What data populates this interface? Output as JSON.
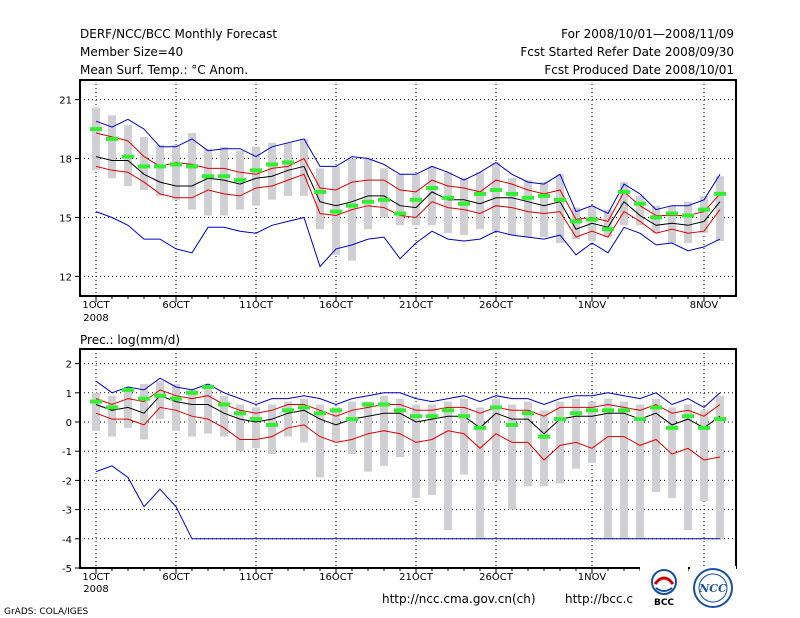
{
  "header": {
    "left": [
      "DERF/NCC/BCC Monthly Forecast",
      "Member Size=40",
      "Mean Surf. Temp.: °C Anom."
    ],
    "right": [
      "For 2008/10/01—2008/11/09",
      "Fcst Started Refer Date 2008/09/30",
      "Fcst Produced Date 2008/10/01"
    ]
  },
  "footer": {
    "grads": "GrADS: COLA/IGES",
    "url1": "http://ncc.cma.gov.cn(ch)",
    "url2": "http://bcc.c",
    "logo_bcc": "BCC",
    "logo_ncc": "NCC"
  },
  "colors": {
    "envelope": "#0000cc",
    "spread": "#dd0000",
    "mean": "#000000",
    "median": "#33ee33",
    "box": "#d0d0d4",
    "grid": "#000000"
  },
  "chart_data": [
    {
      "type": "box",
      "title": "Mean Surf. Temp.: °C Anom.",
      "ylim": [
        11,
        22
      ],
      "yticks": [
        12,
        15,
        18,
        21
      ],
      "xticks": [
        {
          "day": 1,
          "label": "1OCT",
          "sub": "2008"
        },
        {
          "day": 6,
          "label": "6OCT"
        },
        {
          "day": 11,
          "label": "11OCT"
        },
        {
          "day": 16,
          "label": "16OCT"
        },
        {
          "day": 21,
          "label": "21OCT"
        },
        {
          "day": 26,
          "label": "26OCT"
        },
        {
          "day": 32,
          "label": "1NOV"
        },
        {
          "day": 39,
          "label": "8NOV"
        }
      ],
      "days": 40,
      "series": {
        "max": [
          19.9,
          19.6,
          20.0,
          19.5,
          18.6,
          18.6,
          19.0,
          18.4,
          18.5,
          18.5,
          18.1,
          18.6,
          18.8,
          19.0,
          17.6,
          17.6,
          18.1,
          18.0,
          17.7,
          17.2,
          17.2,
          17.6,
          17.3,
          16.9,
          17.3,
          17.8,
          17.2,
          16.8,
          16.7,
          17.2,
          15.3,
          15.6,
          15.2,
          16.7,
          16.2,
          15.4,
          15.6,
          15.6,
          15.9,
          17.2
        ],
        "upper": [
          19.3,
          19.1,
          18.9,
          18.1,
          17.6,
          17.8,
          17.7,
          17.5,
          17.5,
          17.3,
          17.2,
          17.5,
          17.6,
          18.0,
          16.5,
          16.4,
          16.8,
          16.9,
          16.9,
          16.4,
          16.3,
          16.9,
          16.6,
          16.5,
          16.3,
          16.9,
          16.7,
          16.4,
          16.2,
          16.4,
          14.9,
          15.0,
          14.8,
          16.3,
          15.6,
          15.1,
          15.1,
          15.1,
          15.3,
          16.2
        ],
        "mean": [
          18.1,
          17.9,
          17.9,
          17.2,
          16.8,
          16.6,
          16.6,
          17.0,
          16.9,
          16.7,
          17.0,
          17.1,
          17.4,
          17.6,
          15.8,
          15.6,
          15.8,
          16.1,
          16.1,
          15.6,
          15.5,
          16.3,
          15.9,
          15.9,
          15.7,
          16.0,
          16.0,
          15.8,
          15.6,
          15.8,
          14.4,
          14.7,
          14.5,
          15.8,
          15.1,
          14.6,
          14.7,
          14.6,
          14.8,
          15.8
        ],
        "lower": [
          17.6,
          17.4,
          17.3,
          16.8,
          16.2,
          16.0,
          16.0,
          16.4,
          16.2,
          16.1,
          16.5,
          16.6,
          16.9,
          17.2,
          15.2,
          15.1,
          15.4,
          15.6,
          15.5,
          15.1,
          15.0,
          15.8,
          15.5,
          15.4,
          15.2,
          15.6,
          15.5,
          15.3,
          15.2,
          15.3,
          14.0,
          14.3,
          14.0,
          15.3,
          14.8,
          14.2,
          14.4,
          14.2,
          14.3,
          15.4
        ],
        "min": [
          15.3,
          15.0,
          14.6,
          13.9,
          13.9,
          13.4,
          13.2,
          14.5,
          14.5,
          14.3,
          14.2,
          14.6,
          14.8,
          15.0,
          12.5,
          13.4,
          13.6,
          13.9,
          14.0,
          12.9,
          13.7,
          14.3,
          13.9,
          13.8,
          13.9,
          14.3,
          14.1,
          14.0,
          13.9,
          14.1,
          13.1,
          13.7,
          13.2,
          14.5,
          14.2,
          13.6,
          13.7,
          13.3,
          13.5,
          13.9
        ],
        "box_hi": [
          20.6,
          20.2,
          19.7,
          19.1,
          18.7,
          18.7,
          19.3,
          18.5,
          18.6,
          18.4,
          18.6,
          18.8,
          18.8,
          19.0,
          17.5,
          17.6,
          18.0,
          18.0,
          17.5,
          17.2,
          17.2,
          17.6,
          17.3,
          17.0,
          17.3,
          17.8,
          17.0,
          16.9,
          16.8,
          17.2,
          15.5,
          15.6,
          15.4,
          16.8,
          16.1,
          15.6,
          15.6,
          15.8,
          16.1,
          17.1
        ],
        "box_lo": [
          17.4,
          17.0,
          16.6,
          16.4,
          16.1,
          15.9,
          15.4,
          15.1,
          15.1,
          15.4,
          15.6,
          15.9,
          16.1,
          16.1,
          14.4,
          13.1,
          12.8,
          14.4,
          15.0,
          14.6,
          14.6,
          14.6,
          14.2,
          14.1,
          14.4,
          14.3,
          14.1,
          14.0,
          14.0,
          13.7,
          13.9,
          13.8,
          14.0,
          14.6,
          14.6,
          14.2,
          13.7,
          13.7,
          14.2,
          13.8
        ],
        "median": [
          19.5,
          19.0,
          18.1,
          17.6,
          17.6,
          17.7,
          17.6,
          17.1,
          17.1,
          16.9,
          17.4,
          17.7,
          17.8,
          null,
          16.3,
          15.3,
          15.6,
          15.8,
          15.9,
          15.2,
          15.9,
          16.5,
          16.0,
          15.7,
          16.2,
          16.4,
          16.2,
          16.0,
          16.1,
          15.9,
          14.8,
          14.9,
          14.4,
          16.3,
          15.7,
          15.0,
          15.2,
          15.1,
          15.4,
          16.2
        ]
      }
    },
    {
      "type": "box",
      "title": "Prec.: log(mm/d)",
      "ylim": [
        -5,
        2.5
      ],
      "yticks": [
        -5,
        -4,
        -3,
        -2,
        -1,
        0,
        1,
        2
      ],
      "xticks": [
        {
          "day": 1,
          "label": "1OCT",
          "sub": "2008"
        },
        {
          "day": 6,
          "label": "6OCT"
        },
        {
          "day": 11,
          "label": "11OCT"
        },
        {
          "day": 16,
          "label": "16OCT"
        },
        {
          "day": 21,
          "label": "21OCT"
        },
        {
          "day": 26,
          "label": "26OCT"
        },
        {
          "day": 32,
          "label": "1NOV"
        },
        {
          "day": 39,
          "label": "8NOV"
        }
      ],
      "days": 40,
      "series": {
        "max": [
          1.4,
          1.0,
          1.2,
          1.1,
          1.5,
          1.2,
          1.1,
          1.3,
          1.0,
          0.8,
          0.6,
          0.8,
          0.8,
          0.9,
          0.8,
          0.6,
          0.8,
          0.9,
          1.0,
          1.0,
          0.8,
          0.7,
          0.8,
          0.9,
          0.7,
          0.9,
          0.8,
          0.8,
          0.6,
          0.8,
          0.9,
          0.9,
          1.0,
          0.9,
          0.8,
          1.0,
          0.6,
          0.8,
          0.5,
          1.0
        ],
        "upper": [
          0.8,
          0.6,
          0.8,
          0.7,
          1.1,
          0.9,
          0.8,
          0.9,
          0.6,
          0.4,
          0.3,
          0.4,
          0.6,
          0.6,
          0.4,
          0.2,
          0.4,
          0.5,
          0.6,
          0.6,
          0.4,
          0.4,
          0.5,
          0.5,
          0.3,
          0.5,
          0.4,
          0.4,
          0.2,
          0.5,
          0.5,
          0.5,
          0.6,
          0.5,
          0.4,
          0.6,
          0.3,
          0.4,
          0.2,
          0.6
        ],
        "mean": [
          0.6,
          0.4,
          0.5,
          0.3,
          0.9,
          0.7,
          0.6,
          0.6,
          0.3,
          0.1,
          0.0,
          0.1,
          0.3,
          0.4,
          0.1,
          -0.1,
          0.1,
          0.2,
          0.3,
          0.3,
          0.0,
          0.1,
          0.2,
          0.2,
          -0.2,
          0.3,
          0.1,
          0.1,
          -0.4,
          0.1,
          0.2,
          0.2,
          0.3,
          0.3,
          0.1,
          0.3,
          -0.1,
          0.1,
          -0.2,
          0.2
        ],
        "lower": [
          0.3,
          0.1,
          0.1,
          -0.1,
          0.5,
          0.4,
          0.2,
          0.1,
          -0.2,
          -0.6,
          -0.6,
          -0.5,
          -0.2,
          -0.1,
          -0.5,
          -0.7,
          -0.6,
          -0.4,
          -0.3,
          -0.4,
          -0.7,
          -0.6,
          -0.3,
          -0.4,
          -0.9,
          -0.4,
          -0.7,
          -0.7,
          -1.3,
          -0.8,
          -0.7,
          -0.9,
          -0.5,
          -0.5,
          -0.8,
          -0.6,
          -1.1,
          -0.9,
          -1.3,
          -1.2
        ],
        "min": [
          -1.7,
          -1.5,
          -1.9,
          -2.9,
          -2.3,
          -2.9,
          -4.0,
          -4.0,
          -4.0,
          -4.0,
          -4.0,
          -4.0,
          -4.0,
          -4.0,
          -4.0,
          -4.0,
          -4.0,
          -4.0,
          -4.0,
          -4.0,
          -4.0,
          -4.0,
          -4.0,
          -4.0,
          -4.0,
          -4.0,
          -4.0,
          -4.0,
          -4.0,
          -4.0,
          -4.0,
          -4.0,
          -4.0,
          -4.0,
          -4.0,
          -4.0,
          -4.0,
          -4.0,
          -4.0,
          -4.0
        ],
        "box_hi": [
          1.0,
          0.9,
          1.2,
          1.3,
          1.4,
          1.3,
          1.1,
          1.3,
          0.9,
          0.6,
          0.5,
          0.6,
          0.7,
          0.8,
          0.6,
          0.5,
          0.7,
          0.7,
          0.9,
          0.8,
          0.6,
          0.6,
          0.7,
          0.8,
          0.5,
          0.8,
          0.6,
          0.7,
          0.4,
          0.7,
          0.8,
          0.7,
          0.8,
          0.7,
          0.6,
          0.8,
          0.5,
          0.6,
          0.4,
          0.9
        ],
        "box_lo": [
          -0.3,
          -0.5,
          -0.2,
          -0.6,
          0.1,
          -0.3,
          -0.5,
          -0.4,
          -0.5,
          -1.0,
          -0.9,
          -1.1,
          -0.5,
          -0.7,
          -1.9,
          -0.7,
          -1.1,
          -1.7,
          -1.5,
          -1.2,
          -2.6,
          -2.5,
          -3.7,
          -1.8,
          -4.0,
          -2.0,
          -3.0,
          -2.2,
          -2.2,
          -2.1,
          -1.6,
          -1.4,
          -4.0,
          -4.0,
          -4.0,
          -2.4,
          -2.6,
          -3.7,
          -2.7,
          -4.0
        ],
        "median": [
          0.7,
          0.5,
          1.1,
          0.8,
          0.9,
          0.8,
          1.0,
          1.2,
          0.6,
          0.3,
          0.1,
          -0.1,
          0.4,
          0.5,
          0.3,
          0.4,
          0.1,
          0.6,
          0.6,
          0.4,
          0.2,
          0.2,
          0.4,
          0.2,
          -0.2,
          0.5,
          -0.1,
          0.3,
          -0.5,
          0.1,
          0.3,
          0.4,
          0.4,
          0.4,
          0.1,
          0.5,
          -0.2,
          0.2,
          -0.2,
          0.1
        ]
      }
    }
  ]
}
